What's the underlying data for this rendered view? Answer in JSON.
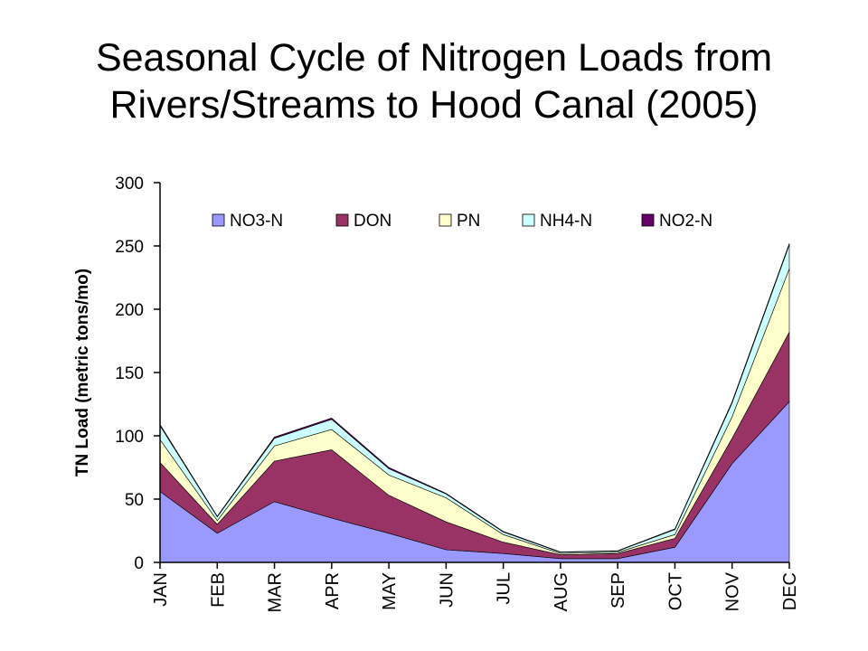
{
  "page": {
    "title_line1": "Seasonal Cycle of Nitrogen Loads from",
    "title_line2": "Rivers/Streams to Hood Canal (2005)"
  },
  "chart_data": {
    "type": "area",
    "stacked": true,
    "title": "Seasonal Cycle of Nitrogen Loads from Rivers/Streams to Hood Canal (2005)",
    "xlabel": "",
    "ylabel": "TN Load (metric tons/mo)",
    "ylim": [
      0,
      300
    ],
    "yticks": [
      0,
      50,
      100,
      150,
      200,
      250,
      300
    ],
    "categories": [
      "JAN",
      "FEB",
      "MAR",
      "APR",
      "MAY",
      "JUN",
      "JUL",
      "AUG",
      "SEP",
      "OCT",
      "NOV",
      "DEC"
    ],
    "legend_position": "top",
    "grid": false,
    "series": [
      {
        "name": "NO3-N",
        "color": "#9999ff",
        "values": [
          56,
          23,
          48,
          35,
          23,
          10,
          7,
          3,
          3,
          12,
          78,
          127
        ]
      },
      {
        "name": "DON",
        "color": "#993366",
        "values": [
          23,
          7,
          32,
          54,
          30,
          22,
          9,
          3,
          4,
          7,
          20,
          55
        ]
      },
      {
        "name": "PN",
        "color": "#ffffcc",
        "values": [
          18,
          3,
          12,
          16,
          16,
          19,
          6,
          1,
          1,
          3,
          17,
          50
        ]
      },
      {
        "name": "NH4-N",
        "color": "#ccffff",
        "values": [
          11,
          3,
          6,
          8,
          5,
          3,
          2,
          1,
          1,
          4,
          11,
          19
        ]
      },
      {
        "name": "NO2-N",
        "color": "#660066",
        "values": [
          1,
          0.5,
          1,
          1,
          1,
          0.5,
          0.5,
          0.3,
          0.3,
          0.5,
          1,
          1
        ]
      }
    ]
  }
}
